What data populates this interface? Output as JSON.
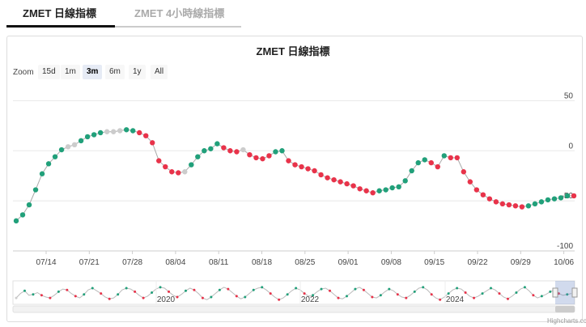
{
  "tabs": [
    {
      "label": "ZMET 日線指標",
      "active": true
    },
    {
      "label": "ZMET 4小時線指標",
      "active": false
    }
  ],
  "zoom": {
    "label": "Zoom",
    "buttons": [
      "15d",
      "1m",
      "3m",
      "6m",
      "1y",
      "All"
    ],
    "selected": "3m"
  },
  "credit": "Highcharts.com",
  "colors": {
    "up": "#21a07a",
    "down": "#e8334a",
    "neutral": "#cccccc",
    "line": "#aaaaaa"
  },
  "chart_data": {
    "type": "line",
    "title": "ZMET 日線指標",
    "x_tick_labels": [
      "07/14",
      "07/21",
      "07/28",
      "08/04",
      "08/11",
      "08/18",
      "08/25",
      "09/01",
      "09/08",
      "09/15",
      "09/22",
      "09/29",
      "10/06"
    ],
    "y_tick_labels": [
      "50",
      "0",
      "-50",
      "-100"
    ],
    "ylim": [
      -100,
      60
    ],
    "grid": true,
    "points": [
      {
        "y": -70,
        "c": "up"
      },
      {
        "y": -64,
        "c": "up"
      },
      {
        "y": -54,
        "c": "up"
      },
      {
        "y": -39,
        "c": "up"
      },
      {
        "y": -23,
        "c": "up"
      },
      {
        "y": -13,
        "c": "up"
      },
      {
        "y": -6,
        "c": "up"
      },
      {
        "y": 1,
        "c": "up"
      },
      {
        "y": 4,
        "c": "neutral"
      },
      {
        "y": 6,
        "c": "neutral"
      },
      {
        "y": 10,
        "c": "up"
      },
      {
        "y": 14,
        "c": "up"
      },
      {
        "y": 16,
        "c": "up"
      },
      {
        "y": 18,
        "c": "up"
      },
      {
        "y": 19,
        "c": "neutral"
      },
      {
        "y": 19,
        "c": "neutral"
      },
      {
        "y": 20,
        "c": "neutral"
      },
      {
        "y": 21,
        "c": "up"
      },
      {
        "y": 20,
        "c": "up"
      },
      {
        "y": 18,
        "c": "down"
      },
      {
        "y": 15,
        "c": "down"
      },
      {
        "y": 8,
        "c": "down"
      },
      {
        "y": -10,
        "c": "down"
      },
      {
        "y": -16,
        "c": "down"
      },
      {
        "y": -21,
        "c": "down"
      },
      {
        "y": -22,
        "c": "down"
      },
      {
        "y": -21,
        "c": "neutral"
      },
      {
        "y": -14,
        "c": "up"
      },
      {
        "y": -6,
        "c": "up"
      },
      {
        "y": 0,
        "c": "up"
      },
      {
        "y": 2,
        "c": "up"
      },
      {
        "y": 7,
        "c": "up"
      },
      {
        "y": 3,
        "c": "down"
      },
      {
        "y": 0,
        "c": "down"
      },
      {
        "y": -1,
        "c": "down"
      },
      {
        "y": 1,
        "c": "neutral"
      },
      {
        "y": -4,
        "c": "down"
      },
      {
        "y": -7,
        "c": "down"
      },
      {
        "y": -8,
        "c": "down"
      },
      {
        "y": -5,
        "c": "down"
      },
      {
        "y": -1,
        "c": "up"
      },
      {
        "y": 0,
        "c": "up"
      },
      {
        "y": -10,
        "c": "down"
      },
      {
        "y": -14,
        "c": "down"
      },
      {
        "y": -16,
        "c": "down"
      },
      {
        "y": -18,
        "c": "down"
      },
      {
        "y": -20,
        "c": "down"
      },
      {
        "y": -24,
        "c": "down"
      },
      {
        "y": -27,
        "c": "down"
      },
      {
        "y": -29,
        "c": "down"
      },
      {
        "y": -31,
        "c": "down"
      },
      {
        "y": -33,
        "c": "down"
      },
      {
        "y": -35,
        "c": "down"
      },
      {
        "y": -38,
        "c": "down"
      },
      {
        "y": -40,
        "c": "down"
      },
      {
        "y": -42,
        "c": "down"
      },
      {
        "y": -40,
        "c": "up"
      },
      {
        "y": -39,
        "c": "up"
      },
      {
        "y": -37,
        "c": "up"
      },
      {
        "y": -36,
        "c": "up"
      },
      {
        "y": -30,
        "c": "up"
      },
      {
        "y": -20,
        "c": "up"
      },
      {
        "y": -12,
        "c": "up"
      },
      {
        "y": -9,
        "c": "up"
      },
      {
        "y": -12,
        "c": "down"
      },
      {
        "y": -16,
        "c": "down"
      },
      {
        "y": -5,
        "c": "up"
      },
      {
        "y": -7,
        "c": "down"
      },
      {
        "y": -7,
        "c": "down"
      },
      {
        "y": -21,
        "c": "down"
      },
      {
        "y": -31,
        "c": "down"
      },
      {
        "y": -39,
        "c": "down"
      },
      {
        "y": -44,
        "c": "down"
      },
      {
        "y": -48,
        "c": "down"
      },
      {
        "y": -51,
        "c": "down"
      },
      {
        "y": -53,
        "c": "down"
      },
      {
        "y": -54,
        "c": "down"
      },
      {
        "y": -55,
        "c": "down"
      },
      {
        "y": -56,
        "c": "down"
      },
      {
        "y": -55,
        "c": "up"
      },
      {
        "y": -53,
        "c": "up"
      },
      {
        "y": -51,
        "c": "up"
      },
      {
        "y": -49,
        "c": "up"
      },
      {
        "y": -48,
        "c": "up"
      },
      {
        "y": -47,
        "c": "up"
      },
      {
        "y": -45,
        "c": "up"
      },
      {
        "y": -45,
        "c": "down"
      }
    ],
    "navigator": {
      "x_tick_labels": [
        "2020",
        "2022",
        "2024"
      ],
      "series": [
        -0.6,
        -0.1,
        0.2,
        -0.3,
        -0.2,
        0.0,
        -0.3,
        -0.5,
        -0.6,
        -0.3,
        0.1,
        0.4,
        0.3,
        -0.1,
        -0.4,
        -0.6,
        -0.2,
        0.3,
        0.5,
        0.2,
        -0.1,
        -0.5,
        -0.7,
        -0.6,
        -0.2,
        0.3,
        0.5,
        0.4,
        0.1,
        -0.3,
        -0.6,
        -0.4,
        0.0,
        0.4,
        0.6,
        0.5,
        0.1,
        -0.3,
        -0.5,
        -0.2,
        0.2,
        0.5,
        0.3,
        -0.1,
        -0.6,
        -0.8,
        -0.5,
        -0.1,
        0.3,
        0.6,
        0.4,
        0.0,
        -0.4,
        -0.7,
        -0.5,
        -0.1,
        0.3,
        0.5,
        0.6,
        0.3,
        -0.1,
        -0.5,
        -0.8,
        -0.6,
        -0.2,
        0.2,
        0.5,
        0.3,
        -0.1,
        -0.4,
        -0.3,
        0.1,
        0.4,
        0.5,
        0.2,
        -0.2,
        -0.6,
        -0.7,
        -0.4,
        0.0,
        0.4,
        0.6,
        0.3,
        -0.1,
        -0.5,
        -0.6,
        -0.3,
        0.1,
        0.4,
        0.2,
        -0.2,
        -0.5,
        -0.6,
        -0.3,
        0.1,
        0.5,
        0.6,
        0.3,
        -0.2,
        -0.6,
        -0.8,
        -0.5,
        -0.1,
        0.3,
        0.5,
        0.4,
        0.0,
        -0.4,
        -0.6,
        -0.4,
        -0.1,
        0.2,
        0.5,
        0.3,
        -0.1,
        -0.5,
        -0.7,
        -0.4,
        0.0,
        0.4,
        0.6,
        0.2,
        -0.3,
        -0.6,
        -0.4,
        -0.2,
        0.1,
        0.3,
        -0.1,
        -0.3,
        -0.2,
        -0.1
      ]
    }
  }
}
